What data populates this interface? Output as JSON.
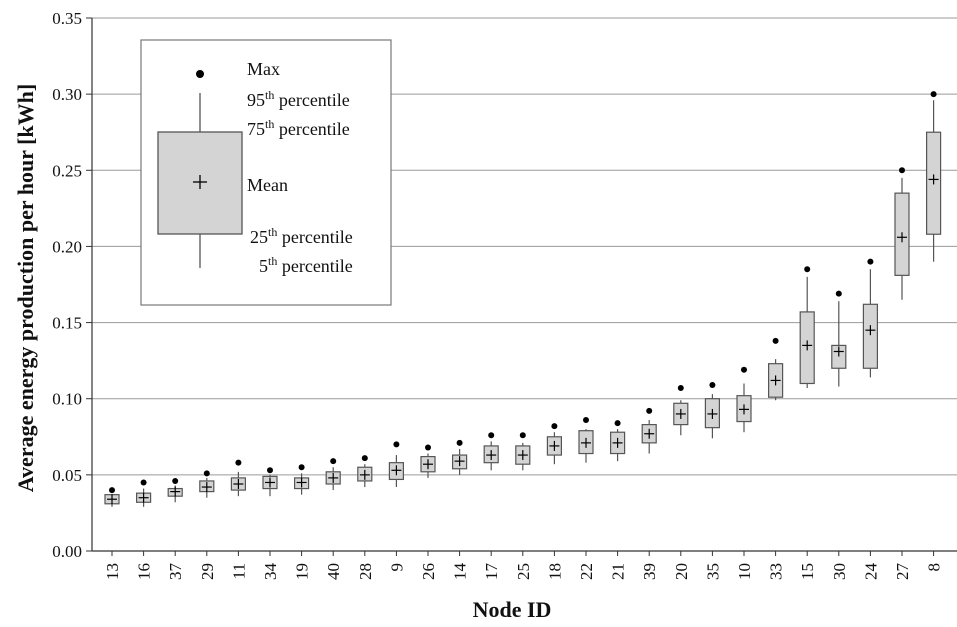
{
  "chart_data": {
    "type": "box",
    "title": "",
    "xlabel": "Node ID",
    "ylabel": "Average energy production per hour [kWh]",
    "ylim": [
      0,
      0.35
    ],
    "yticks": [
      "0.00",
      "0.05",
      "0.10",
      "0.15",
      "0.20",
      "0.25",
      "0.30",
      "0.35"
    ],
    "grid": "horizontal",
    "legend_position": "top-left",
    "colors": {
      "box_fill": "#d4d4d4",
      "box_stroke": "#555555",
      "grid": "#9a9a9a",
      "marker": "#000000"
    },
    "legend": {
      "max": "Max",
      "p95": {
        "num": "95",
        "sup": "th",
        "text": " percentile"
      },
      "p75": {
        "num": "75",
        "sup": "th",
        "text": " percentile"
      },
      "mean": "Mean",
      "p25": {
        "num": "25",
        "sup": "th",
        "text": " percentile"
      },
      "p5": {
        "num": "5",
        "sup": "th",
        "text": " percentile"
      }
    },
    "categories": [
      "13",
      "16",
      "37",
      "29",
      "11",
      "34",
      "19",
      "40",
      "28",
      "9",
      "26",
      "14",
      "17",
      "25",
      "18",
      "22",
      "21",
      "39",
      "20",
      "35",
      "10",
      "33",
      "15",
      "30",
      "24",
      "27",
      "8"
    ],
    "series": [
      {
        "max": [
          0.04,
          0.045,
          0.046,
          0.051,
          0.058,
          0.053,
          0.055,
          0.059,
          0.061,
          0.07,
          0.068,
          0.071,
          0.076,
          0.076,
          0.082,
          0.086,
          0.084,
          0.092,
          0.107,
          0.109,
          0.119,
          0.138,
          0.185,
          0.169,
          0.19,
          0.25,
          0.3
        ],
        "p95": [
          0.036,
          0.041,
          0.043,
          0.048,
          0.052,
          0.05,
          0.051,
          0.055,
          0.057,
          0.063,
          0.064,
          0.067,
          0.072,
          0.071,
          0.078,
          0.08,
          0.08,
          0.086,
          0.099,
          0.103,
          0.11,
          0.126,
          0.18,
          0.164,
          0.185,
          0.245,
          0.296
        ],
        "p75": [
          0.037,
          0.038,
          0.041,
          0.046,
          0.048,
          0.049,
          0.048,
          0.052,
          0.055,
          0.058,
          0.062,
          0.063,
          0.069,
          0.069,
          0.075,
          0.079,
          0.078,
          0.083,
          0.097,
          0.1,
          0.102,
          0.123,
          0.157,
          0.135,
          0.162,
          0.235,
          0.275
        ],
        "mean": [
          0.034,
          0.035,
          0.039,
          0.042,
          0.044,
          0.045,
          0.045,
          0.048,
          0.05,
          0.053,
          0.057,
          0.059,
          0.063,
          0.063,
          0.069,
          0.071,
          0.071,
          0.077,
          0.09,
          0.09,
          0.093,
          0.112,
          0.135,
          0.131,
          0.145,
          0.206,
          0.244
        ],
        "p25": [
          0.031,
          0.032,
          0.036,
          0.039,
          0.04,
          0.041,
          0.041,
          0.044,
          0.046,
          0.047,
          0.052,
          0.054,
          0.058,
          0.057,
          0.063,
          0.064,
          0.064,
          0.071,
          0.083,
          0.081,
          0.085,
          0.101,
          0.11,
          0.12,
          0.12,
          0.181,
          0.208
        ],
        "p5": [
          0.029,
          0.029,
          0.032,
          0.035,
          0.036,
          0.036,
          0.037,
          0.04,
          0.042,
          0.042,
          0.048,
          0.05,
          0.053,
          0.053,
          0.057,
          0.058,
          0.059,
          0.064,
          0.076,
          0.074,
          0.078,
          0.099,
          0.107,
          0.108,
          0.114,
          0.165,
          0.19
        ]
      }
    ]
  }
}
